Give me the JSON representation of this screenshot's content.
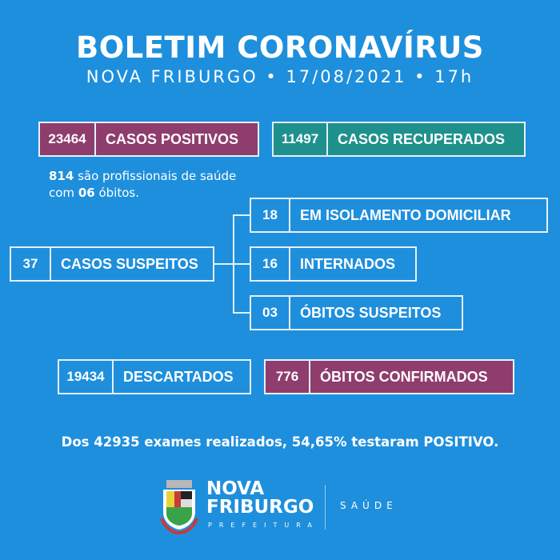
{
  "header": {
    "title": "BOLETIM CORONAVÍRUS",
    "subtitle": "NOVA FRIBURGO • 17/08/2021 • 17h"
  },
  "colors": {
    "background": "#1e8fdc",
    "positive": "#8f3d6d",
    "recovered": "#1f918d",
    "deaths": "#8f3d6d"
  },
  "stats": {
    "positivos": {
      "value": "23464",
      "label": "CASOS POSITIVOS"
    },
    "recuperados": {
      "value": "11497",
      "label": "CASOS RECUPERADOS"
    },
    "suspeitos": {
      "value": "37",
      "label": "CASOS SUSPEITOS"
    },
    "isolamento": {
      "value": "18",
      "label": "EM ISOLAMENTO DOMICILIAR"
    },
    "internados": {
      "value": "16",
      "label": "INTERNADOS"
    },
    "obitos_suspeitos": {
      "value": "03",
      "label": "ÓBITOS SUSPEITOS"
    },
    "descartados": {
      "value": "19434",
      "label": "DESCARTADOS"
    },
    "obitos_confirmados": {
      "value": "776",
      "label": "ÓBITOS CONFIRMADOS"
    }
  },
  "note": {
    "n1": "814",
    "t1": " são profissionais de saúde",
    "t2": "com ",
    "n2": "06",
    "t3": " óbitos."
  },
  "summary": "Dos 42935 exames realizados, 54,65% testaram POSITIVO.",
  "footer": {
    "logo_line1": "NOVA",
    "logo_line2": "FRIBURGO",
    "logo_sub": "PREFEITURA",
    "department": "SAÚDE",
    "crest_icon": "city-coat-of-arms"
  }
}
